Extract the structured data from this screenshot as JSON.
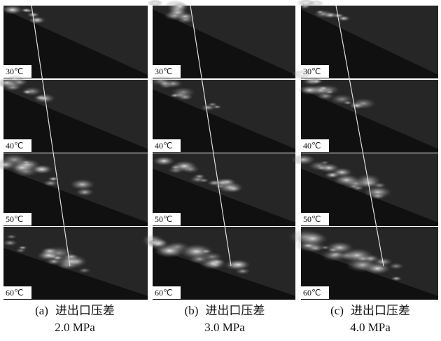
{
  "panels": [
    {
      "label": "(a)",
      "caption": "进出口压差",
      "pressure": "2.0 MPa",
      "rows": [
        "30℃",
        "40℃",
        "50℃",
        "60℃"
      ]
    },
    {
      "label": "(b)",
      "caption": "进出口压差",
      "pressure": "3.0 MPa",
      "rows": [
        "30℃",
        "40℃",
        "50℃",
        "60℃"
      ]
    },
    {
      "label": "(c)",
      "caption": "进出口压差",
      "pressure": "4.0 MPa",
      "rows": [
        "30℃",
        "40℃",
        "50℃",
        "60℃"
      ]
    }
  ]
}
